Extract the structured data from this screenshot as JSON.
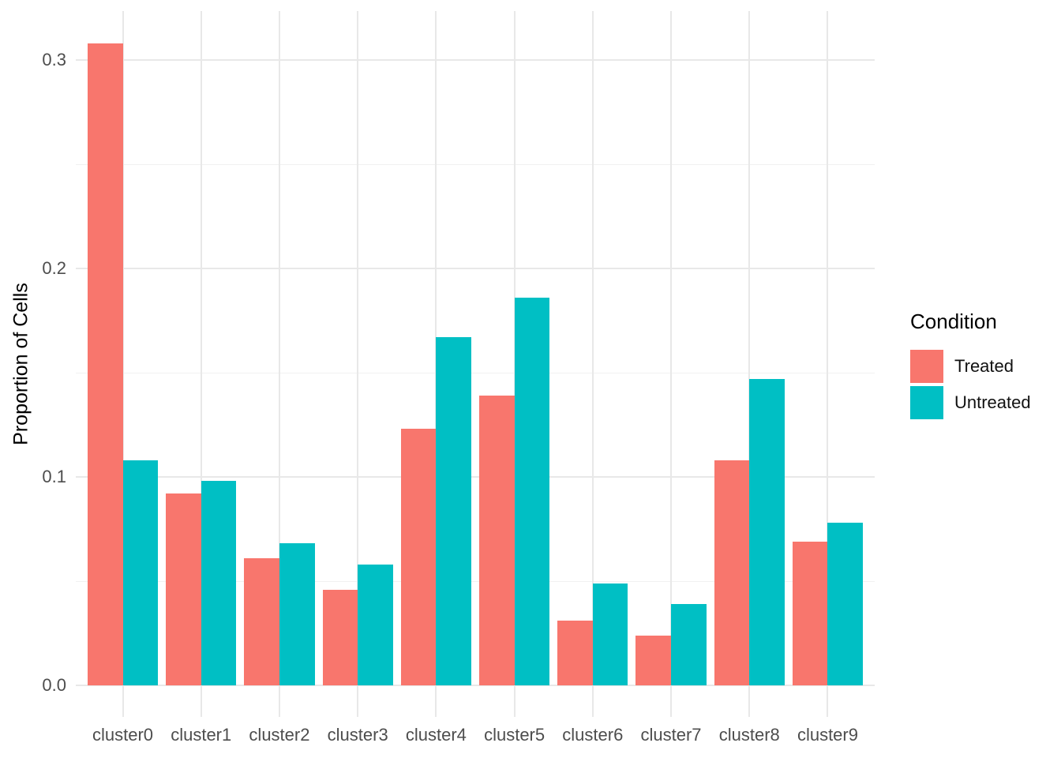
{
  "chart_data": {
    "type": "bar",
    "title": "",
    "xlabel": "",
    "ylabel": "Proportion of Cells",
    "categories": [
      "cluster0",
      "cluster1",
      "cluster2",
      "cluster3",
      "cluster4",
      "cluster5",
      "cluster6",
      "cluster7",
      "cluster8",
      "cluster9"
    ],
    "series": [
      {
        "name": "Treated",
        "color": "#F8766D",
        "values": [
          0.308,
          0.092,
          0.061,
          0.046,
          0.123,
          0.139,
          0.031,
          0.024,
          0.108,
          0.069
        ]
      },
      {
        "name": "Untreated",
        "color": "#00BFC4",
        "values": [
          0.108,
          0.098,
          0.068,
          0.058,
          0.167,
          0.186,
          0.049,
          0.039,
          0.147,
          0.078
        ]
      }
    ],
    "yticks": [
      {
        "value": 0.0,
        "label": "0.0"
      },
      {
        "value": 0.1,
        "label": "0.1"
      },
      {
        "value": 0.2,
        "label": "0.2"
      },
      {
        "value": 0.3,
        "label": "0.3"
      }
    ],
    "yminor": [
      0.05,
      0.15,
      0.25
    ],
    "ylim": [
      -0.015,
      0.3235
    ],
    "grid": true,
    "legend": {
      "title": "Condition",
      "position": "right"
    },
    "colors": {
      "grid_major": "#E8E8E8",
      "grid_minor": "#F1F1F1",
      "tick_label": "#4D4D4D",
      "axis_title": "#000000",
      "background": "#FFFFFF"
    }
  }
}
